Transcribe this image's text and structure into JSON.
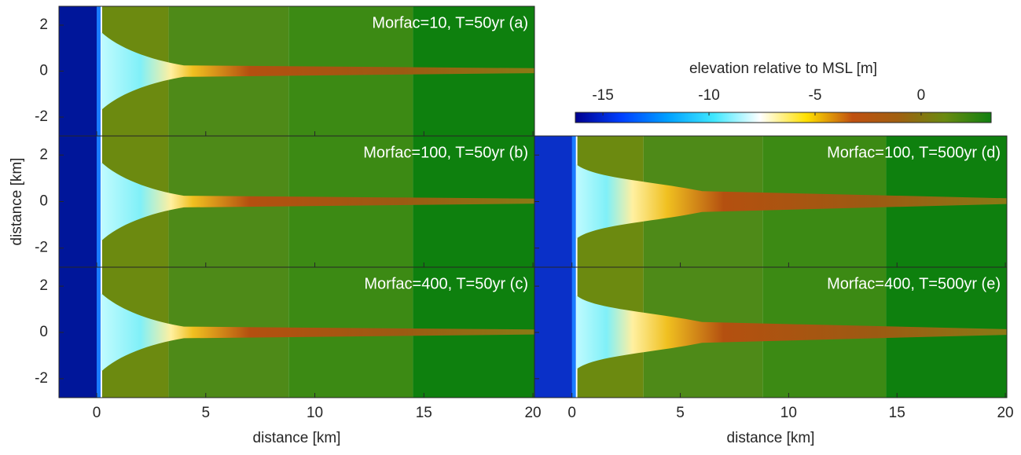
{
  "chart_data": [
    {
      "type": "heatmap",
      "title": "Morfac=10, T=50yr (a)",
      "xlim": [
        -1.73,
        20.07
      ],
      "ylim": [
        -2.82,
        2.82
      ],
      "xticks": [
        0,
        5,
        10,
        15,
        20
      ],
      "yticks": [
        -2,
        0,
        2
      ]
    },
    {
      "type": "heatmap",
      "title": "Morfac=100, T=50yr (b)",
      "ylabel": "distance [km]",
      "xlim": [
        -1.73,
        20.07
      ],
      "ylim": [
        -2.82,
        2.82
      ],
      "xticks": [
        0,
        5,
        10,
        15,
        20
      ],
      "yticks": [
        -2,
        0,
        2
      ]
    },
    {
      "type": "heatmap",
      "title": "Morfac=400, T=50yr (c)",
      "xlabel": "distance [km]",
      "xlim": [
        -1.73,
        20.07
      ],
      "ylim": [
        -2.82,
        2.82
      ],
      "xticks": [
        0,
        5,
        10,
        15,
        20
      ],
      "yticks": [
        -2,
        0,
        2
      ]
    },
    {
      "type": "heatmap",
      "title": "Morfac=100, T=500yr (d)",
      "xlim": [
        -1.73,
        20.07
      ],
      "ylim": [
        -2.82,
        2.82
      ],
      "xticks": [
        0,
        5,
        10,
        15,
        20
      ],
      "yticks": [
        -2,
        0,
        2
      ]
    },
    {
      "type": "heatmap",
      "title": "Morfac=400, T=500yr (e)",
      "xlabel": "distance [km]",
      "xlim": [
        -1.73,
        20.07
      ],
      "ylim": [
        -2.82,
        2.82
      ],
      "xticks": [
        0,
        5,
        10,
        15,
        20
      ],
      "yticks": [
        -2,
        0,
        2
      ]
    }
  ],
  "colorbar": {
    "label": "elevation relative to MSL [m]",
    "lim": [
      -16.3,
      3.3
    ],
    "ticks": [
      -15,
      -10,
      -5,
      0
    ],
    "colors": [
      "#00008f",
      "#0040ff",
      "#00a0ff",
      "#40e8ff",
      "#ffffff",
      "#ffe000",
      "#c05010",
      "#a06010",
      "#6a8a10",
      "#108010"
    ]
  }
}
